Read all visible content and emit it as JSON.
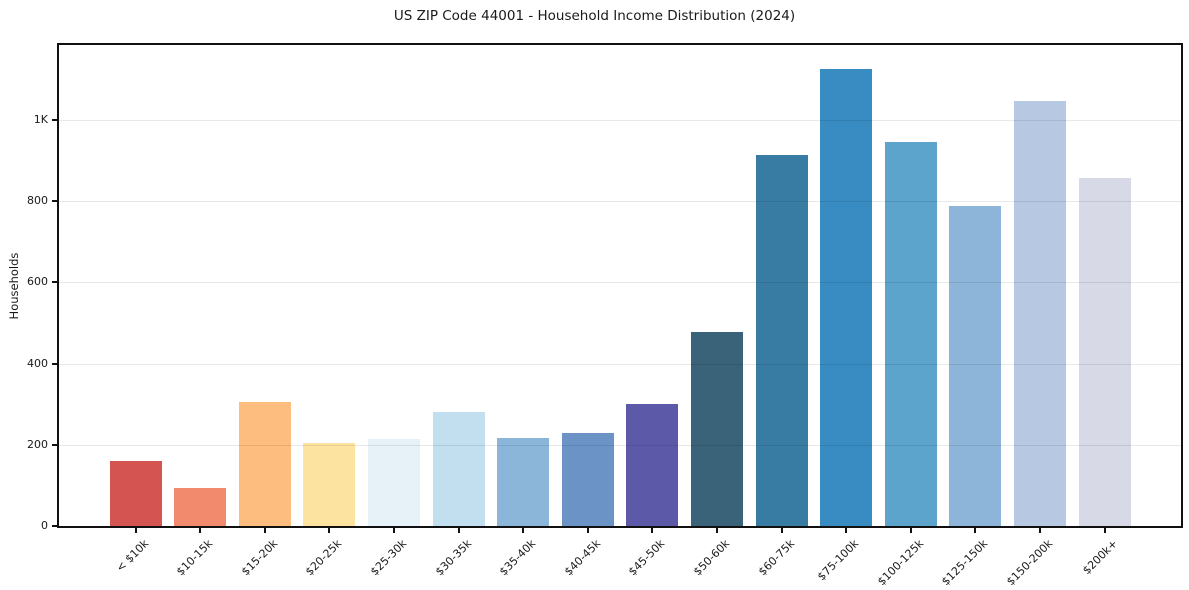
{
  "chart_data": {
    "type": "bar",
    "title": "US ZIP Code 44001 - Household Income Distribution (2024)",
    "xlabel": "",
    "ylabel": "Households",
    "categories": [
      "< $10k",
      "$10-15k",
      "$15-20k",
      "$20-25k",
      "$25-30k",
      "$30-35k",
      "$35-40k",
      "$40-45k",
      "$45-50k",
      "$50-60k",
      "$60-75k",
      "$75-100k",
      "$100-125k",
      "$125-150k",
      "$150-200k",
      "$200k+"
    ],
    "values": [
      160,
      93,
      305,
      204,
      214,
      280,
      218,
      230,
      301,
      479,
      913,
      1126,
      947,
      788,
      1048,
      857
    ],
    "bar_colors": [
      "#d35450",
      "#f28b6d",
      "#fcbd7e",
      "#fde3a0",
      "#e6f2f8",
      "#c1dfee",
      "#8cb6d9",
      "#6c93c6",
      "#5c5aa8",
      "#3a6278",
      "#387ba3",
      "#388cc1",
      "#5ca4cc",
      "#8db5d9",
      "#b6c8e2",
      "#d7d9e7"
    ],
    "ylim": [
      0,
      1185
    ],
    "yticks": [
      {
        "value": 0,
        "label": "0"
      },
      {
        "value": 200,
        "label": "200"
      },
      {
        "value": 400,
        "label": "400"
      },
      {
        "value": 600,
        "label": "600"
      },
      {
        "value": 800,
        "label": "800"
      },
      {
        "value": 1000,
        "label": "1K"
      }
    ],
    "grid": "horizontal",
    "legend": "none",
    "background_color": "#ffffff",
    "spine_color": "#111111"
  }
}
